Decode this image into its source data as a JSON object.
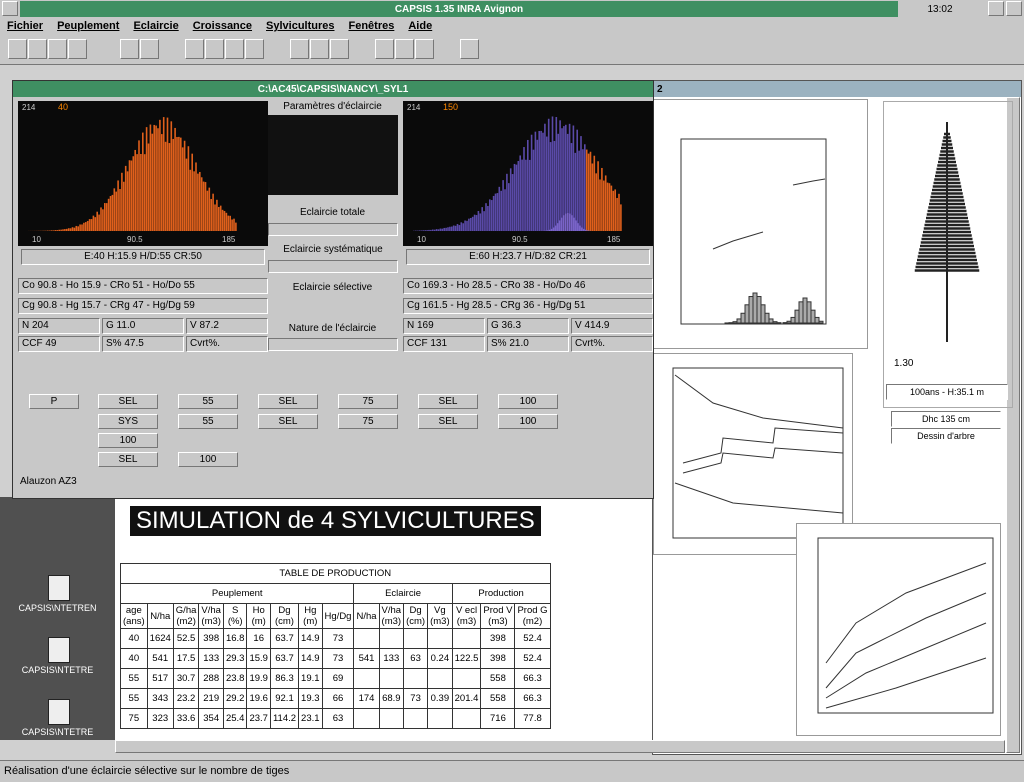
{
  "app": {
    "title": "CAPSIS 1.35   INRA Avignon",
    "clock": "13:02"
  },
  "menu": [
    "Fichier",
    "Peuplement",
    "Eclaircie",
    "Croissance",
    "Sylvicultures",
    "Fenêtres",
    "Aide"
  ],
  "window1": {
    "title": "C:\\AC45\\CAPSIS\\NANCY\\_SYL1",
    "left": {
      "ymax": "214",
      "n": "40",
      "x": [
        "10",
        "90.5",
        "185"
      ],
      "summary": "E:40  H:15.9  H/D:55  CR:50",
      "line1": "Co 90.8 - Ho 15.9 - CRo 51 - Ho/Do 55",
      "line2": "Cg 90.8 - Hg 15.7 - CRg 47 - Hg/Dg 59",
      "stats": [
        "N 204",
        "G 11.0",
        "V 87.2",
        "CCF 49",
        "S% 47.5",
        "Cvrt%."
      ]
    },
    "right": {
      "ymax": "214",
      "n": "150",
      "x": [
        "10",
        "90.5",
        "185"
      ],
      "summary": "E:60  H:23.7  H/D:82  CR:21",
      "line1": "Co 169.3 - Ho 28.5 - CRo 38 - Ho/Do 46",
      "line2": "Cg 161.5 - Hg 28.5 - CRg 36 - Hg/Dg 51",
      "stats": [
        "N 169",
        "G 36.3",
        "V 414.9",
        "CCF 131",
        "S% 21.0",
        "Cvrt%."
      ]
    },
    "params": {
      "title": "Paramètres d'éclaircie",
      "options": [
        "Eclaircie totale",
        "Eclaircie systématique",
        "Eclaircie sélective",
        "Nature de l'éclaircie"
      ]
    },
    "grid": [
      [
        "P",
        "SEL",
        "55",
        "SEL",
        "75",
        "SEL",
        "100"
      ],
      [
        "SYS",
        "55",
        "SEL",
        "75",
        "SEL",
        "100"
      ],
      [
        "100"
      ],
      [
        "SEL",
        "100"
      ]
    ],
    "status": "Alauzon   AZ3"
  },
  "window2": {
    "number": "2",
    "tree": {
      "height_mark": "1.30",
      "info": "100ans - H:35.1 m",
      "dhc": "Dhc 135 cm",
      "button": "Dessin d'arbre"
    }
  },
  "heading": "SIMULATION de 4 SYLVICULTURES",
  "table": {
    "title": "TABLE DE PRODUCTION",
    "groups": [
      "Peuplement",
      "Eclaircie",
      "Production"
    ],
    "columns": [
      {
        "name": "age",
        "unit": "(ans)"
      },
      {
        "name": "N/ha"
      },
      {
        "name": "G/ha",
        "unit": "(m2)"
      },
      {
        "name": "V/ha",
        "unit": "(m3)"
      },
      {
        "name": "S",
        "unit": "(%)"
      },
      {
        "name": "Ho",
        "unit": "(m)"
      },
      {
        "name": "Dg",
        "unit": "(cm)"
      },
      {
        "name": "Hg",
        "unit": "(m)"
      },
      {
        "name": "Hg/Dg"
      },
      {
        "name": "N/ha"
      },
      {
        "name": "V/ha",
        "unit": "(m3)"
      },
      {
        "name": "Dg",
        "unit": "(cm)"
      },
      {
        "name": "Vg",
        "unit": "(m3)"
      },
      {
        "name": "V ecl",
        "unit": "(m3)"
      },
      {
        "name": "Prod V",
        "unit": "(m3)"
      },
      {
        "name": "Prod G",
        "unit": "(m2)"
      }
    ],
    "rows": [
      [
        "40",
        "1624",
        "52.5",
        "398",
        "16.8",
        "16",
        "63.7",
        "14.9",
        "73",
        null,
        null,
        null,
        null,
        null,
        "398",
        "52.4"
      ],
      [
        "40",
        "541",
        "17.5",
        "133",
        "29.3",
        "15.9",
        "63.7",
        "14.9",
        "73",
        "541",
        "133",
        "63",
        "0.24",
        "122.5",
        "398",
        "52.4"
      ],
      [
        "55",
        "517",
        "30.7",
        "288",
        "23.8",
        "19.9",
        "86.3",
        "19.1",
        "69",
        null,
        null,
        null,
        null,
        null,
        "558",
        "66.3"
      ],
      [
        "55",
        "343",
        "23.2",
        "219",
        "29.2",
        "19.6",
        "92.1",
        "19.3",
        "66",
        "174",
        "68.9",
        "73",
        "0.39",
        "201.4",
        "558",
        "66.3"
      ],
      [
        "75",
        "323",
        "33.6",
        "354",
        "25.4",
        "23.7",
        "114.2",
        "23.1",
        "63",
        null,
        null,
        null,
        null,
        null,
        "716",
        "77.8"
      ]
    ]
  },
  "icons": [
    "CAPSIS\\NTETREN",
    "CAPSIS\\NTETRE",
    "CAPSIS\\NTETRE"
  ],
  "status_bar": "Réalisation d'une éclaircie sélective sur le nombre de tiges"
}
